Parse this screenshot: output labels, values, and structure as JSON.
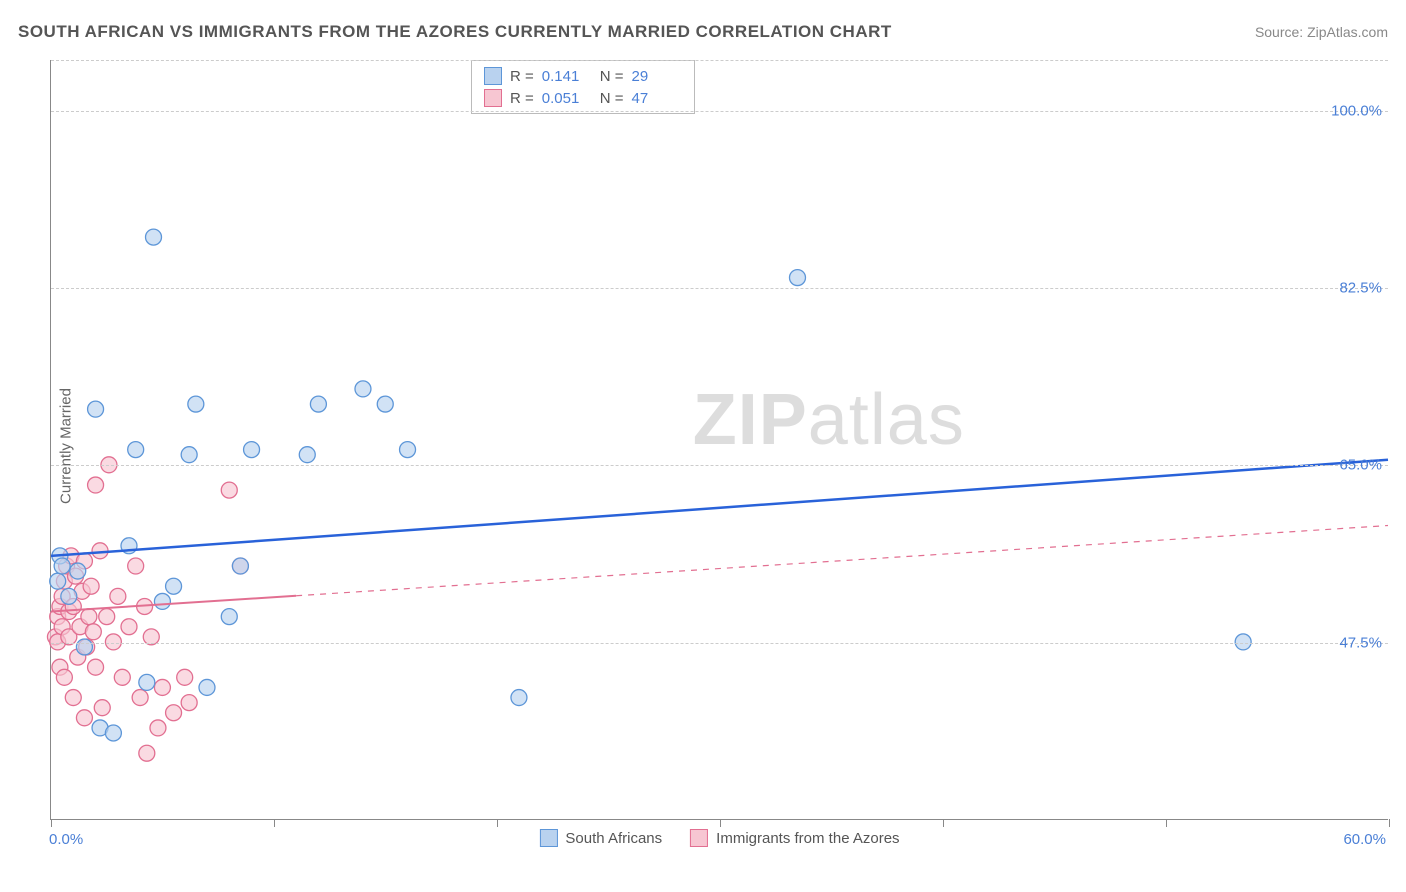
{
  "title": "SOUTH AFRICAN VS IMMIGRANTS FROM THE AZORES CURRENTLY MARRIED CORRELATION CHART",
  "source": "Source: ZipAtlas.com",
  "y_axis_label": "Currently Married",
  "watermark_bold": "ZIP",
  "watermark_light": "atlas",
  "chart": {
    "type": "scatter",
    "xlim": [
      0,
      60
    ],
    "ylim": [
      30,
      105
    ],
    "x_origin_label": "0.0%",
    "x_max_label": "60.0%",
    "y_ticks": [
      {
        "value": 47.5,
        "label": "47.5%"
      },
      {
        "value": 65.0,
        "label": "65.0%"
      },
      {
        "value": 82.5,
        "label": "82.5%"
      },
      {
        "value": 100.0,
        "label": "100.0%"
      }
    ],
    "x_tick_positions": [
      0,
      10,
      20,
      30,
      40,
      50,
      60
    ],
    "grid_color": "#cccccc",
    "background_color": "#ffffff",
    "marker_radius": 8,
    "marker_stroke_width": 1.3,
    "series": [
      {
        "name": "South Africans",
        "fill_color": "#b9d2ef",
        "stroke_color": "#5d96d8",
        "fill_opacity": 0.65,
        "R": "0.141",
        "N": "29",
        "trend": {
          "x1": 0,
          "y1": 56,
          "x2": 60,
          "y2": 65.5,
          "solid_until_x": 60,
          "stroke": "#2962d9",
          "width": 2.5
        },
        "points": [
          [
            0.3,
            53.5
          ],
          [
            0.4,
            56
          ],
          [
            0.5,
            55
          ],
          [
            0.8,
            52
          ],
          [
            1.2,
            54.5
          ],
          [
            1.5,
            47
          ],
          [
            2.0,
            70.5
          ],
          [
            2.2,
            39
          ],
          [
            2.8,
            38.5
          ],
          [
            3.5,
            57
          ],
          [
            3.8,
            66.5
          ],
          [
            4.3,
            43.5
          ],
          [
            4.6,
            87.5
          ],
          [
            5.0,
            51.5
          ],
          [
            5.5,
            53
          ],
          [
            6.2,
            66
          ],
          [
            6.5,
            71
          ],
          [
            7.0,
            43
          ],
          [
            8.0,
            50
          ],
          [
            8.5,
            55
          ],
          [
            9.0,
            66.5
          ],
          [
            11.5,
            66
          ],
          [
            12.0,
            71
          ],
          [
            14.0,
            72.5
          ],
          [
            15.0,
            71
          ],
          [
            16.0,
            66.5
          ],
          [
            21.0,
            42
          ],
          [
            33.5,
            83.5
          ],
          [
            53.5,
            47.5
          ]
        ]
      },
      {
        "name": "Immigrants from the Azores",
        "fill_color": "#f7c6d2",
        "stroke_color": "#e26f91",
        "fill_opacity": 0.65,
        "R": "0.051",
        "N": "47",
        "trend": {
          "x1": 0,
          "y1": 50.5,
          "x2": 60,
          "y2": 59,
          "solid_until_x": 11,
          "stroke": "#e26f91",
          "width": 2
        },
        "points": [
          [
            0.2,
            48
          ],
          [
            0.3,
            50
          ],
          [
            0.3,
            47.5
          ],
          [
            0.4,
            51
          ],
          [
            0.4,
            45
          ],
          [
            0.5,
            52
          ],
          [
            0.5,
            49
          ],
          [
            0.6,
            53.5
          ],
          [
            0.6,
            44
          ],
          [
            0.7,
            55
          ],
          [
            0.8,
            48
          ],
          [
            0.8,
            50.5
          ],
          [
            0.9,
            56
          ],
          [
            1.0,
            42
          ],
          [
            1.0,
            51
          ],
          [
            1.1,
            54
          ],
          [
            1.2,
            46
          ],
          [
            1.3,
            49
          ],
          [
            1.4,
            52.5
          ],
          [
            1.5,
            55.5
          ],
          [
            1.5,
            40
          ],
          [
            1.6,
            47
          ],
          [
            1.7,
            50
          ],
          [
            1.8,
            53
          ],
          [
            1.9,
            48.5
          ],
          [
            2.0,
            63
          ],
          [
            2.0,
            45
          ],
          [
            2.2,
            56.5
          ],
          [
            2.3,
            41
          ],
          [
            2.5,
            50
          ],
          [
            2.6,
            65
          ],
          [
            2.8,
            47.5
          ],
          [
            3.0,
            52
          ],
          [
            3.2,
            44
          ],
          [
            3.5,
            49
          ],
          [
            3.8,
            55
          ],
          [
            4.0,
            42
          ],
          [
            4.2,
            51
          ],
          [
            4.3,
            36.5
          ],
          [
            4.5,
            48
          ],
          [
            5.0,
            43
          ],
          [
            5.5,
            40.5
          ],
          [
            6.0,
            44
          ],
          [
            6.2,
            41.5
          ],
          [
            8.0,
            62.5
          ],
          [
            8.5,
            55
          ],
          [
            4.8,
            39
          ]
        ]
      }
    ]
  },
  "legend": {
    "series1_label": "South Africans",
    "series2_label": "Immigrants from the Azores"
  }
}
